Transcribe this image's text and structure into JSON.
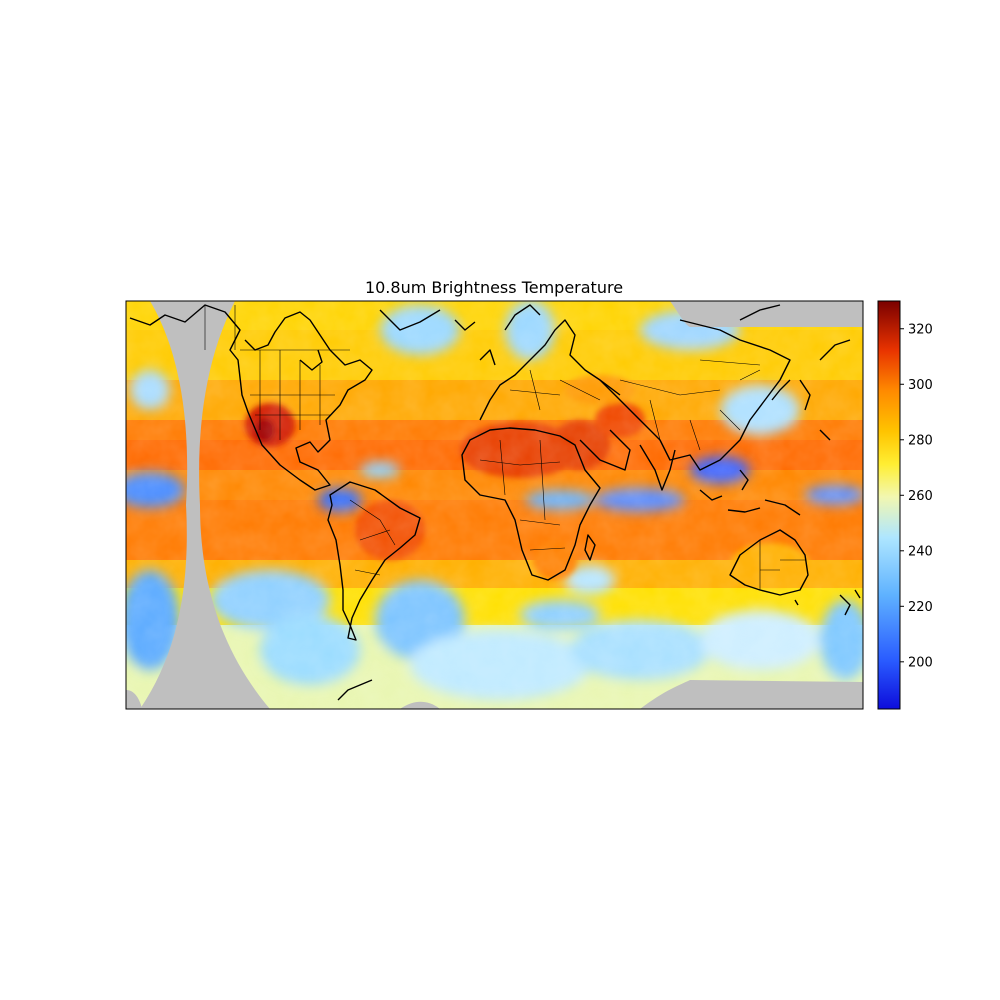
{
  "figure": {
    "title": "10.8um Brightness Temperature"
  },
  "map": {
    "projection": "equirectangular",
    "no_data_color": "#bfbfbf",
    "coastline_color": "#000000",
    "border_color": "#000000"
  },
  "colorbar": {
    "cmap": "jet",
    "vmin": 183,
    "vmax": 330,
    "ticks": [
      200,
      220,
      240,
      260,
      280,
      300,
      320
    ],
    "tick_labels": [
      "200",
      "220",
      "240",
      "260",
      "280",
      "300",
      "320"
    ]
  }
}
